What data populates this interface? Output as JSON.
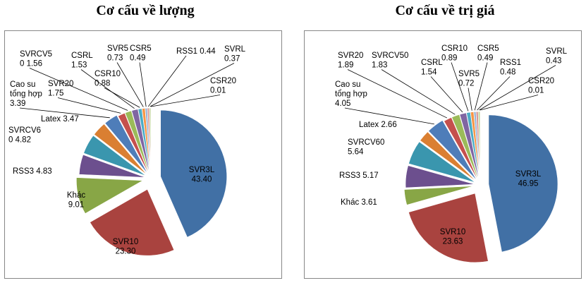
{
  "chart_data": [
    {
      "type": "pie",
      "title": "Cơ cấu về lượng",
      "slices": [
        {
          "name": "SVR3L",
          "value": 43.4,
          "label": "43.40",
          "color": "#4170A5"
        },
        {
          "name": "SVR10",
          "value": 23.3,
          "label": "23.30",
          "color": "#A9433F"
        },
        {
          "name": "Khác",
          "value": 9.01,
          "label": "9.01",
          "color": "#88A646"
        },
        {
          "name": "RSS3",
          "value": 4.83,
          "label": "4.83",
          "color": "#6C4F8E"
        },
        {
          "name": "SVRCV60",
          "value": 4.82,
          "label": "4.82",
          "color": "#3A96AE"
        },
        {
          "name": "Latex",
          "value": 3.47,
          "label": "3.47",
          "color": "#DA7F32"
        },
        {
          "name": "Cao su tổng hợp",
          "value": 3.39,
          "label": "3.39",
          "color": "#4E7DB9"
        },
        {
          "name": "SVR20",
          "value": 1.75,
          "label": "1.75",
          "color": "#C5504D"
        },
        {
          "name": "SVRCV50",
          "value": 1.56,
          "label": "1.56",
          "color": "#9BBB59"
        },
        {
          "name": "CSRL",
          "value": 1.53,
          "label": "1.53",
          "color": "#8065A2"
        },
        {
          "name": "CSR10",
          "value": 0.88,
          "label": "0.88",
          "color": "#4BACC6"
        },
        {
          "name": "SVR5",
          "value": 0.73,
          "label": "0.73",
          "color": "#F79646"
        },
        {
          "name": "CSR5",
          "value": 0.49,
          "label": "0.49",
          "color": "#95B3D7"
        },
        {
          "name": "RSS1",
          "value": 0.44,
          "label": "0.44",
          "color": "#D99694"
        },
        {
          "name": "SVRL",
          "value": 0.37,
          "label": "0.37",
          "color": "#C3D69B"
        },
        {
          "name": "CSR20",
          "value": 0.01,
          "label": "0.01",
          "color": "#B3A2C7"
        }
      ]
    },
    {
      "type": "pie",
      "title": "Cơ cấu về trị giá",
      "slices": [
        {
          "name": "SVR3L",
          "value": 46.95,
          "label": "46.95",
          "color": "#4170A5"
        },
        {
          "name": "SVR10",
          "value": 23.63,
          "label": "23.63",
          "color": "#A9433F"
        },
        {
          "name": "Khác",
          "value": 3.61,
          "label": "3.61",
          "color": "#88A646"
        },
        {
          "name": "RSS3",
          "value": 5.17,
          "label": "5.17",
          "color": "#6C4F8E"
        },
        {
          "name": "SVRCV60",
          "value": 5.64,
          "label": "5.64",
          "color": "#3A96AE"
        },
        {
          "name": "Latex",
          "value": 2.66,
          "label": "2.66",
          "color": "#DA7F32"
        },
        {
          "name": "Cao su tổng hợp",
          "value": 4.05,
          "label": "4.05",
          "color": "#4E7DB9"
        },
        {
          "name": "SVR20",
          "value": 1.89,
          "label": "1.89",
          "color": "#C5504D"
        },
        {
          "name": "SVRCV50",
          "value": 1.83,
          "label": "1.83",
          "color": "#9BBB59"
        },
        {
          "name": "CSRL",
          "value": 1.54,
          "label": "1.54",
          "color": "#8065A2"
        },
        {
          "name": "CSR10",
          "value": 0.89,
          "label": "0.89",
          "color": "#4BACC6"
        },
        {
          "name": "SVR5",
          "value": 0.72,
          "label": "0.72",
          "color": "#F79646"
        },
        {
          "name": "CSR5",
          "value": 0.49,
          "label": "0.49",
          "color": "#95B3D7"
        },
        {
          "name": "RSS1",
          "value": 0.48,
          "label": "0.48",
          "color": "#D99694"
        },
        {
          "name": "SVRL",
          "value": 0.43,
          "label": "0.43",
          "color": "#C3D69B"
        },
        {
          "name": "CSR20",
          "value": 0.01,
          "label": "0.01",
          "color": "#B3A2C7"
        }
      ]
    }
  ]
}
